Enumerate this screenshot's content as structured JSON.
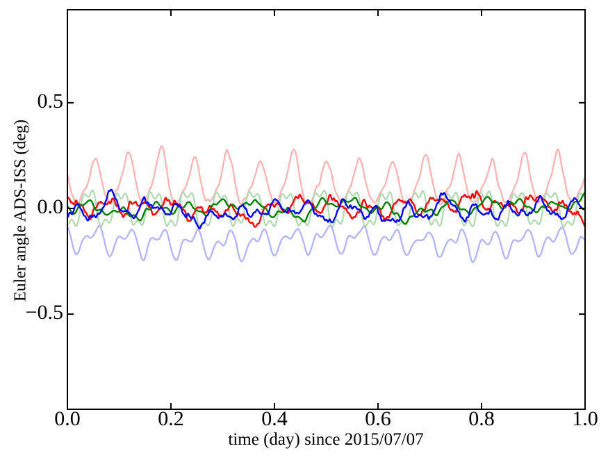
{
  "figure": {
    "background": "#ffffff",
    "spine_color": "#000000"
  },
  "chart_data": {
    "type": "line",
    "title": "",
    "xlabel": "time (day) since 2015/07/07",
    "ylabel": "Euler angle ADS-ISS (deg)",
    "xlim": [
      0.0,
      1.0
    ],
    "ylim": [
      -0.95,
      0.94
    ],
    "xticks": {
      "values": [
        0.0,
        0.2,
        0.4,
        0.6,
        0.8,
        1.0
      ],
      "labels": [
        "0.0",
        "0.2",
        "0.4",
        "0.6",
        "0.8",
        "1.0"
      ]
    },
    "yticks": {
      "values": [
        0.5,
        0.0,
        -0.5
      ],
      "labels": [
        "0.5",
        "0.0",
        "−0.5"
      ]
    },
    "grid": false,
    "legend": "none",
    "tick_direction": "in",
    "pattern_note": "Six quasi-periodic Euler-angle traces over one day; ~15.7 oscillations per day (ISS orbital period ~92 min). Three faint traces (alpha-blended red/green/blue) and three saturated noisy traces near zero.",
    "n_points": 1400,
    "series": [
      {
        "name": "red-faint",
        "color": "#ffb3b3",
        "line_width": 2.3,
        "behavior": "periodic sharp peaks, baseline ~0.03 deg, peak heights 0.20-0.31 deg, first peak t=0.054, period 0.0638 day",
        "base": 0.032,
        "harmonics": [
          {
            "f": 15.67,
            "a": 0.018,
            "p": 2.0
          }
        ],
        "spikes": {
          "t0": 0.0537,
          "period": 0.0638,
          "sigma": 0.01,
          "amp": 0.205,
          "amp_jitter": 0.22,
          "shoulder_offset": -0.021,
          "shoulder_sigma": 0.0065,
          "shoulder_amp": 0.05
        },
        "noise": [
          {
            "amp": 0.006,
            "w": 3
          }
        ],
        "seed": 11
      },
      {
        "name": "green-faint",
        "color": "#b3d9b3",
        "line_width": 2.3,
        "behavior": "square-ish oscillation between about +0.10 and -0.10 deg at orbital period",
        "base": -0.003,
        "harmonics": [
          {
            "f": 15.67,
            "a": 0.082,
            "p": -2.435
          },
          {
            "f": 47.01,
            "a": 0.027,
            "p": -1.023
          }
        ],
        "noise": [
          {
            "amp": 0.005,
            "w": 5
          }
        ],
        "seed": 22
      },
      {
        "name": "blue-faint",
        "color": "#b3b3ff",
        "line_width": 2.3,
        "behavior": "wavy band around -0.16 deg, rounded tops near -0.10 and sharp dips to about -0.27 deg",
        "base": -0.157,
        "harmonics": [
          {
            "f": 15.67,
            "a": 0.047,
            "p": 2.567
          },
          {
            "f": 31.34,
            "a": 0.032,
            "p": 1.5
          },
          {
            "f": 2.0,
            "a": 0.012,
            "p": 1.2
          }
        ],
        "noise": [
          {
            "amp": 0.006,
            "w": 5
          }
        ],
        "seed": 33
      },
      {
        "name": "red",
        "color": "#ff0000",
        "line_width": 2.4,
        "behavior": "noisy residual around 0, roughly +0.08 to -0.09 deg",
        "base": 0.007,
        "harmonics": [
          {
            "f": 15.67,
            "a": 0.027,
            "p": 0.6
          },
          {
            "f": 31.34,
            "a": 0.015,
            "p": 2.4
          }
        ],
        "noise": [
          {
            "amp": 0.022,
            "w": 26
          },
          {
            "amp": 0.007,
            "w": 2
          }
        ],
        "seed": 47
      },
      {
        "name": "green",
        "color": "#008000",
        "line_width": 2.4,
        "behavior": "smoother noisy residual around 0, roughly +0.07 to -0.07 deg",
        "base": 0.003,
        "harmonics": [
          {
            "f": 15.67,
            "a": 0.023,
            "p": 3.7
          },
          {
            "f": 47.01,
            "a": 0.008,
            "p": 1.1
          },
          {
            "f": 4.0,
            "a": 0.007,
            "p": 0.4
          }
        ],
        "noise": [
          {
            "amp": 0.017,
            "w": 42
          },
          {
            "amp": 0.004,
            "w": 4
          }
        ],
        "seed": 58
      },
      {
        "name": "blue",
        "color": "#0000ff",
        "line_width": 2.4,
        "behavior": "noisy residual around 0 with sharp downward excursions to about -0.10 deg",
        "base": -0.012,
        "harmonics": [
          {
            "f": 15.67,
            "a": 0.028,
            "p": 5.5
          },
          {
            "f": 31.34,
            "a": 0.017,
            "p": 4.1
          }
        ],
        "noise": [
          {
            "amp": 0.02,
            "w": 22
          },
          {
            "amp": 0.006,
            "w": 2
          }
        ],
        "seed": 69
      }
    ]
  }
}
